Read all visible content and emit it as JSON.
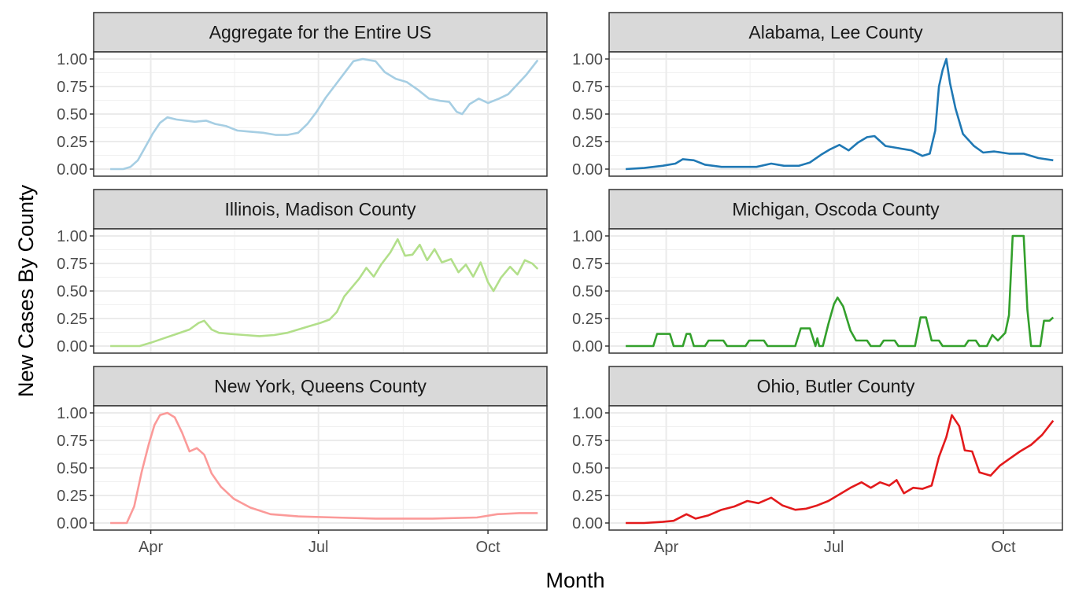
{
  "figure": {
    "xlabel": "Month",
    "ylabel": "New Cases By County"
  },
  "chart_data": {
    "type": "line",
    "facet_layout": "3 rows x 2 columns",
    "xlabel": "Month",
    "ylabel": "New Cases By County",
    "x_unit": "date (2020)",
    "xlim": [
      "2020-03-01",
      "2020-11-02"
    ],
    "ylim": [
      0,
      1
    ],
    "grid": true,
    "x_ticks": [
      {
        "label": "Apr",
        "date": "2020-04-01"
      },
      {
        "label": "Jul",
        "date": "2020-07-01"
      },
      {
        "label": "Oct",
        "date": "2020-10-01"
      }
    ],
    "y_ticks": [
      {
        "label": "0.00",
        "value": 0
      },
      {
        "label": "0.25",
        "value": 0.25
      },
      {
        "label": "0.50",
        "value": 0.5
      },
      {
        "label": "0.75",
        "value": 0.75
      },
      {
        "label": "1.00",
        "value": 1
      }
    ],
    "panels": [
      {
        "title": "Aggregate for the Entire US",
        "color": "#a6cee3",
        "points": [
          [
            "2020-03-10",
            0.0
          ],
          [
            "2020-03-17",
            0.0
          ],
          [
            "2020-03-21",
            0.02
          ],
          [
            "2020-03-25",
            0.08
          ],
          [
            "2020-03-29",
            0.2
          ],
          [
            "2020-04-02",
            0.32
          ],
          [
            "2020-04-06",
            0.42
          ],
          [
            "2020-04-10",
            0.47
          ],
          [
            "2020-04-15",
            0.45
          ],
          [
            "2020-04-20",
            0.44
          ],
          [
            "2020-04-25",
            0.43
          ],
          [
            "2020-05-01",
            0.44
          ],
          [
            "2020-05-06",
            0.41
          ],
          [
            "2020-05-12",
            0.39
          ],
          [
            "2020-05-18",
            0.35
          ],
          [
            "2020-05-25",
            0.34
          ],
          [
            "2020-06-01",
            0.33
          ],
          [
            "2020-06-08",
            0.31
          ],
          [
            "2020-06-14",
            0.31
          ],
          [
            "2020-06-20",
            0.33
          ],
          [
            "2020-06-25",
            0.41
          ],
          [
            "2020-06-30",
            0.52
          ],
          [
            "2020-07-05",
            0.65
          ],
          [
            "2020-07-10",
            0.76
          ],
          [
            "2020-07-15",
            0.87
          ],
          [
            "2020-07-20",
            0.98
          ],
          [
            "2020-07-25",
            1.0
          ],
          [
            "2020-08-01",
            0.98
          ],
          [
            "2020-08-06",
            0.88
          ],
          [
            "2020-08-12",
            0.82
          ],
          [
            "2020-08-18",
            0.79
          ],
          [
            "2020-08-24",
            0.72
          ],
          [
            "2020-08-30",
            0.64
          ],
          [
            "2020-09-05",
            0.62
          ],
          [
            "2020-09-10",
            0.61
          ],
          [
            "2020-09-14",
            0.52
          ],
          [
            "2020-09-17",
            0.5
          ],
          [
            "2020-09-21",
            0.59
          ],
          [
            "2020-09-26",
            0.64
          ],
          [
            "2020-10-01",
            0.6
          ],
          [
            "2020-10-07",
            0.64
          ],
          [
            "2020-10-12",
            0.68
          ],
          [
            "2020-10-17",
            0.77
          ],
          [
            "2020-10-22",
            0.86
          ],
          [
            "2020-10-28",
            0.99
          ]
        ]
      },
      {
        "title": "Alabama, Lee County",
        "color": "#1f78b4",
        "points": [
          [
            "2020-03-10",
            0.0
          ],
          [
            "2020-03-20",
            0.01
          ],
          [
            "2020-03-30",
            0.03
          ],
          [
            "2020-04-06",
            0.05
          ],
          [
            "2020-04-10",
            0.09
          ],
          [
            "2020-04-16",
            0.08
          ],
          [
            "2020-04-22",
            0.04
          ],
          [
            "2020-05-01",
            0.02
          ],
          [
            "2020-05-10",
            0.02
          ],
          [
            "2020-05-20",
            0.02
          ],
          [
            "2020-05-28",
            0.05
          ],
          [
            "2020-06-04",
            0.03
          ],
          [
            "2020-06-12",
            0.03
          ],
          [
            "2020-06-18",
            0.06
          ],
          [
            "2020-06-24",
            0.13
          ],
          [
            "2020-06-29",
            0.18
          ],
          [
            "2020-07-04",
            0.22
          ],
          [
            "2020-07-09",
            0.17
          ],
          [
            "2020-07-14",
            0.24
          ],
          [
            "2020-07-19",
            0.29
          ],
          [
            "2020-07-23",
            0.3
          ],
          [
            "2020-07-29",
            0.21
          ],
          [
            "2020-08-05",
            0.19
          ],
          [
            "2020-08-12",
            0.17
          ],
          [
            "2020-08-18",
            0.12
          ],
          [
            "2020-08-22",
            0.14
          ],
          [
            "2020-08-25",
            0.35
          ],
          [
            "2020-08-27",
            0.75
          ],
          [
            "2020-08-29",
            0.9
          ],
          [
            "2020-08-31",
            1.0
          ],
          [
            "2020-09-02",
            0.78
          ],
          [
            "2020-09-05",
            0.55
          ],
          [
            "2020-09-09",
            0.32
          ],
          [
            "2020-09-15",
            0.21
          ],
          [
            "2020-09-20",
            0.15
          ],
          [
            "2020-09-26",
            0.16
          ],
          [
            "2020-10-04",
            0.14
          ],
          [
            "2020-10-12",
            0.14
          ],
          [
            "2020-10-20",
            0.1
          ],
          [
            "2020-10-28",
            0.08
          ]
        ]
      },
      {
        "title": "Illinois, Madison County",
        "color": "#b2df8a",
        "points": [
          [
            "2020-03-10",
            0.0
          ],
          [
            "2020-03-26",
            0.0
          ],
          [
            "2020-04-01",
            0.03
          ],
          [
            "2020-04-08",
            0.07
          ],
          [
            "2020-04-15",
            0.11
          ],
          [
            "2020-04-22",
            0.15
          ],
          [
            "2020-04-27",
            0.21
          ],
          [
            "2020-04-30",
            0.23
          ],
          [
            "2020-05-04",
            0.15
          ],
          [
            "2020-05-08",
            0.12
          ],
          [
            "2020-05-14",
            0.11
          ],
          [
            "2020-05-22",
            0.1
          ],
          [
            "2020-05-30",
            0.09
          ],
          [
            "2020-06-07",
            0.1
          ],
          [
            "2020-06-14",
            0.12
          ],
          [
            "2020-06-20",
            0.15
          ],
          [
            "2020-06-26",
            0.18
          ],
          [
            "2020-07-02",
            0.21
          ],
          [
            "2020-07-07",
            0.24
          ],
          [
            "2020-07-11",
            0.31
          ],
          [
            "2020-07-15",
            0.45
          ],
          [
            "2020-07-19",
            0.53
          ],
          [
            "2020-07-23",
            0.61
          ],
          [
            "2020-07-27",
            0.71
          ],
          [
            "2020-07-31",
            0.63
          ],
          [
            "2020-08-04",
            0.74
          ],
          [
            "2020-08-09",
            0.85
          ],
          [
            "2020-08-13",
            0.97
          ],
          [
            "2020-08-17",
            0.82
          ],
          [
            "2020-08-21",
            0.83
          ],
          [
            "2020-08-25",
            0.92
          ],
          [
            "2020-08-29",
            0.78
          ],
          [
            "2020-09-02",
            0.88
          ],
          [
            "2020-09-06",
            0.76
          ],
          [
            "2020-09-11",
            0.79
          ],
          [
            "2020-09-15",
            0.67
          ],
          [
            "2020-09-19",
            0.74
          ],
          [
            "2020-09-23",
            0.63
          ],
          [
            "2020-09-27",
            0.76
          ],
          [
            "2020-10-01",
            0.58
          ],
          [
            "2020-10-04",
            0.5
          ],
          [
            "2020-10-08",
            0.62
          ],
          [
            "2020-10-13",
            0.72
          ],
          [
            "2020-10-17",
            0.65
          ],
          [
            "2020-10-21",
            0.78
          ],
          [
            "2020-10-25",
            0.75
          ],
          [
            "2020-10-28",
            0.7
          ]
        ]
      },
      {
        "title": "Michigan, Oscoda County",
        "color": "#33a02c",
        "points": [
          [
            "2020-03-10",
            0.0
          ],
          [
            "2020-03-25",
            0.0
          ],
          [
            "2020-03-27",
            0.11
          ],
          [
            "2020-04-03",
            0.11
          ],
          [
            "2020-04-05",
            0.0
          ],
          [
            "2020-04-10",
            0.0
          ],
          [
            "2020-04-12",
            0.11
          ],
          [
            "2020-04-14",
            0.11
          ],
          [
            "2020-04-16",
            0.0
          ],
          [
            "2020-04-22",
            0.0
          ],
          [
            "2020-04-24",
            0.05
          ],
          [
            "2020-05-02",
            0.05
          ],
          [
            "2020-05-04",
            0.0
          ],
          [
            "2020-05-14",
            0.0
          ],
          [
            "2020-05-16",
            0.05
          ],
          [
            "2020-05-24",
            0.05
          ],
          [
            "2020-05-26",
            0.0
          ],
          [
            "2020-06-10",
            0.0
          ],
          [
            "2020-06-13",
            0.16
          ],
          [
            "2020-06-18",
            0.16
          ],
          [
            "2020-06-21",
            0.0
          ],
          [
            "2020-06-22",
            0.07
          ],
          [
            "2020-06-23",
            0.0
          ],
          [
            "2020-06-25",
            0.0
          ],
          [
            "2020-06-28",
            0.2
          ],
          [
            "2020-07-01",
            0.38
          ],
          [
            "2020-07-03",
            0.44
          ],
          [
            "2020-07-06",
            0.36
          ],
          [
            "2020-07-10",
            0.14
          ],
          [
            "2020-07-13",
            0.05
          ],
          [
            "2020-07-19",
            0.05
          ],
          [
            "2020-07-21",
            0.0
          ],
          [
            "2020-07-26",
            0.0
          ],
          [
            "2020-07-28",
            0.05
          ],
          [
            "2020-08-03",
            0.05
          ],
          [
            "2020-08-05",
            0.0
          ],
          [
            "2020-08-14",
            0.0
          ],
          [
            "2020-08-17",
            0.26
          ],
          [
            "2020-08-20",
            0.26
          ],
          [
            "2020-08-23",
            0.05
          ],
          [
            "2020-08-27",
            0.05
          ],
          [
            "2020-08-29",
            0.0
          ],
          [
            "2020-09-10",
            0.0
          ],
          [
            "2020-09-12",
            0.05
          ],
          [
            "2020-09-16",
            0.05
          ],
          [
            "2020-09-18",
            0.0
          ],
          [
            "2020-09-22",
            0.0
          ],
          [
            "2020-09-25",
            0.1
          ],
          [
            "2020-09-28",
            0.05
          ],
          [
            "2020-10-02",
            0.12
          ],
          [
            "2020-10-04",
            0.28
          ],
          [
            "2020-10-06",
            1.0
          ],
          [
            "2020-10-12",
            1.0
          ],
          [
            "2020-10-14",
            0.33
          ],
          [
            "2020-10-16",
            0.0
          ],
          [
            "2020-10-21",
            0.0
          ],
          [
            "2020-10-23",
            0.23
          ],
          [
            "2020-10-26",
            0.23
          ],
          [
            "2020-10-28",
            0.26
          ]
        ]
      },
      {
        "title": "New York, Queens County",
        "color": "#fb9a99",
        "points": [
          [
            "2020-03-10",
            0.0
          ],
          [
            "2020-03-19",
            0.0
          ],
          [
            "2020-03-23",
            0.15
          ],
          [
            "2020-03-27",
            0.46
          ],
          [
            "2020-03-31",
            0.72
          ],
          [
            "2020-04-03",
            0.89
          ],
          [
            "2020-04-06",
            0.98
          ],
          [
            "2020-04-10",
            1.0
          ],
          [
            "2020-04-14",
            0.96
          ],
          [
            "2020-04-18",
            0.82
          ],
          [
            "2020-04-22",
            0.65
          ],
          [
            "2020-04-26",
            0.68
          ],
          [
            "2020-04-30",
            0.62
          ],
          [
            "2020-05-04",
            0.45
          ],
          [
            "2020-05-09",
            0.33
          ],
          [
            "2020-05-16",
            0.22
          ],
          [
            "2020-05-25",
            0.14
          ],
          [
            "2020-06-05",
            0.08
          ],
          [
            "2020-06-20",
            0.06
          ],
          [
            "2020-07-10",
            0.05
          ],
          [
            "2020-08-01",
            0.04
          ],
          [
            "2020-09-01",
            0.04
          ],
          [
            "2020-09-25",
            0.05
          ],
          [
            "2020-10-06",
            0.08
          ],
          [
            "2020-10-18",
            0.09
          ],
          [
            "2020-10-28",
            0.09
          ]
        ]
      },
      {
        "title": "Ohio, Butler County",
        "color": "#e31a1c",
        "points": [
          [
            "2020-03-10",
            0.0
          ],
          [
            "2020-03-20",
            0.0
          ],
          [
            "2020-03-30",
            0.01
          ],
          [
            "2020-04-05",
            0.02
          ],
          [
            "2020-04-12",
            0.08
          ],
          [
            "2020-04-17",
            0.04
          ],
          [
            "2020-04-24",
            0.07
          ],
          [
            "2020-05-01",
            0.12
          ],
          [
            "2020-05-08",
            0.15
          ],
          [
            "2020-05-15",
            0.2
          ],
          [
            "2020-05-21",
            0.18
          ],
          [
            "2020-05-28",
            0.23
          ],
          [
            "2020-06-03",
            0.16
          ],
          [
            "2020-06-10",
            0.12
          ],
          [
            "2020-06-16",
            0.13
          ],
          [
            "2020-06-22",
            0.16
          ],
          [
            "2020-06-28",
            0.2
          ],
          [
            "2020-07-04",
            0.26
          ],
          [
            "2020-07-10",
            0.32
          ],
          [
            "2020-07-16",
            0.37
          ],
          [
            "2020-07-21",
            0.32
          ],
          [
            "2020-07-26",
            0.37
          ],
          [
            "2020-07-31",
            0.34
          ],
          [
            "2020-08-04",
            0.39
          ],
          [
            "2020-08-08",
            0.27
          ],
          [
            "2020-08-13",
            0.32
          ],
          [
            "2020-08-18",
            0.31
          ],
          [
            "2020-08-23",
            0.34
          ],
          [
            "2020-08-27",
            0.6
          ],
          [
            "2020-08-31",
            0.78
          ],
          [
            "2020-09-03",
            0.98
          ],
          [
            "2020-09-07",
            0.88
          ],
          [
            "2020-09-10",
            0.66
          ],
          [
            "2020-09-14",
            0.65
          ],
          [
            "2020-09-18",
            0.46
          ],
          [
            "2020-09-24",
            0.43
          ],
          [
            "2020-09-29",
            0.52
          ],
          [
            "2020-10-04",
            0.58
          ],
          [
            "2020-10-10",
            0.65
          ],
          [
            "2020-10-16",
            0.71
          ],
          [
            "2020-10-22",
            0.8
          ],
          [
            "2020-10-28",
            0.93
          ]
        ]
      }
    ]
  }
}
